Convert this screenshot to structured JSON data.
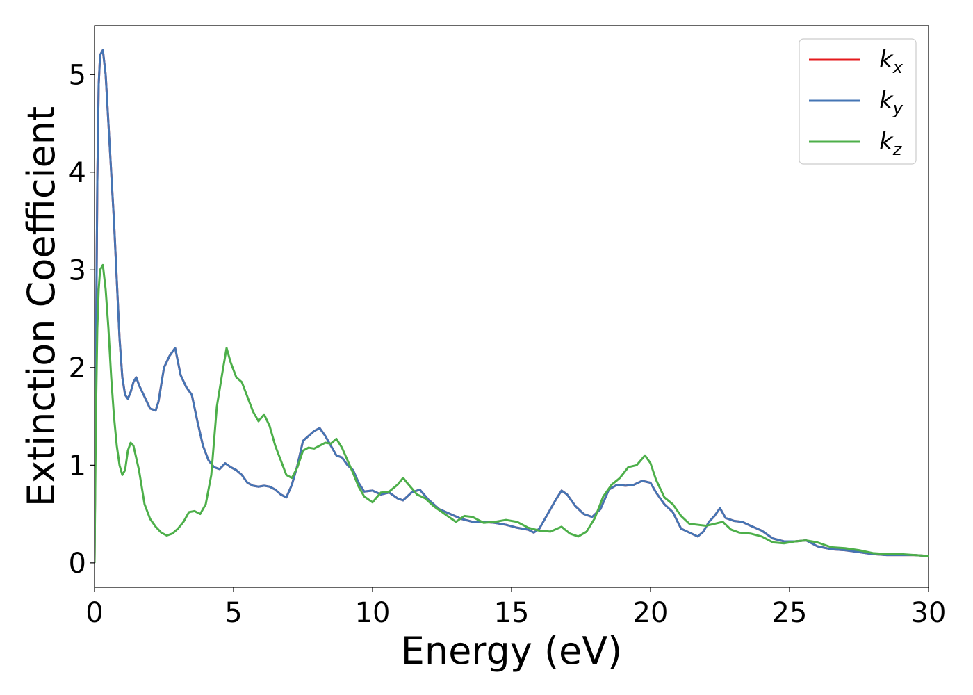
{
  "chart_data": {
    "type": "line",
    "xlabel": "Energy (eV)",
    "ylabel": "Extinction Coefficient",
    "xlim": [
      0,
      30
    ],
    "ylim": [
      -0.25,
      5.5
    ],
    "xticks": [
      0,
      5,
      10,
      15,
      20,
      25,
      30
    ],
    "yticks": [
      0,
      1,
      2,
      3,
      4,
      5
    ],
    "grid": false,
    "legend_position": "top-right",
    "series": [
      {
        "name": "k_x",
        "label_base": "k",
        "label_sub": "x",
        "color": "#e41a1c",
        "x": [
          0,
          0.05,
          0.1,
          0.15,
          0.2,
          0.3,
          0.4,
          0.5,
          0.7,
          0.9,
          1.0,
          1.1,
          1.2,
          1.3,
          1.4,
          1.5,
          1.6,
          1.8,
          2.0,
          2.2,
          2.3,
          2.5,
          2.7,
          2.9,
          3.1,
          3.3,
          3.5,
          3.7,
          3.9,
          4.1,
          4.3,
          4.5,
          4.7,
          4.9,
          5.1,
          5.3,
          5.5,
          5.7,
          5.9,
          6.1,
          6.3,
          6.5,
          6.7,
          6.9,
          7.1,
          7.3,
          7.5,
          7.7,
          7.9,
          8.1,
          8.3,
          8.5,
          8.7,
          8.9,
          9.1,
          9.3,
          9.5,
          9.7,
          10.0,
          10.3,
          10.6,
          10.9,
          11.1,
          11.4,
          11.7,
          12.0,
          12.4,
          12.8,
          13.2,
          13.6,
          14.0,
          14.4,
          14.8,
          15.2,
          15.6,
          15.8,
          16.0,
          16.3,
          16.6,
          16.8,
          17.0,
          17.3,
          17.6,
          17.9,
          18.2,
          18.5,
          18.8,
          19.1,
          19.4,
          19.7,
          20.0,
          20.2,
          20.5,
          20.8,
          21.1,
          21.4,
          21.7,
          21.9,
          22.1,
          22.3,
          22.5,
          22.7,
          23.0,
          23.3,
          23.6,
          24.0,
          24.4,
          24.8,
          25.2,
          25.6,
          26.0,
          26.5,
          27.0,
          27.5,
          28.0,
          28.5,
          29.0,
          29.5,
          30.0
        ],
        "y": [
          0.0,
          2.0,
          3.9,
          4.9,
          5.2,
          5.25,
          5.0,
          4.5,
          3.5,
          2.3,
          1.9,
          1.72,
          1.68,
          1.75,
          1.85,
          1.9,
          1.82,
          1.7,
          1.58,
          1.56,
          1.65,
          2.0,
          2.12,
          2.2,
          1.92,
          1.8,
          1.72,
          1.45,
          1.2,
          1.05,
          0.98,
          0.96,
          1.02,
          0.98,
          0.95,
          0.9,
          0.82,
          0.79,
          0.78,
          0.79,
          0.78,
          0.75,
          0.7,
          0.67,
          0.8,
          1.0,
          1.25,
          1.3,
          1.35,
          1.38,
          1.3,
          1.2,
          1.1,
          1.08,
          1.0,
          0.95,
          0.82,
          0.73,
          0.74,
          0.7,
          0.72,
          0.66,
          0.64,
          0.72,
          0.75,
          0.65,
          0.55,
          0.5,
          0.45,
          0.42,
          0.42,
          0.41,
          0.39,
          0.36,
          0.34,
          0.31,
          0.35,
          0.5,
          0.65,
          0.74,
          0.7,
          0.58,
          0.5,
          0.47,
          0.55,
          0.75,
          0.8,
          0.79,
          0.8,
          0.84,
          0.82,
          0.72,
          0.6,
          0.52,
          0.35,
          0.31,
          0.27,
          0.32,
          0.42,
          0.48,
          0.56,
          0.46,
          0.43,
          0.42,
          0.38,
          0.33,
          0.25,
          0.22,
          0.22,
          0.23,
          0.17,
          0.14,
          0.13,
          0.11,
          0.09,
          0.08,
          0.08,
          0.08,
          0.07
        ]
      },
      {
        "name": "k_y",
        "label_base": "k",
        "label_sub": "y",
        "color": "#4575b4",
        "x": [
          0,
          0.05,
          0.1,
          0.15,
          0.2,
          0.3,
          0.4,
          0.5,
          0.7,
          0.9,
          1.0,
          1.1,
          1.2,
          1.3,
          1.4,
          1.5,
          1.6,
          1.8,
          2.0,
          2.2,
          2.3,
          2.5,
          2.7,
          2.9,
          3.1,
          3.3,
          3.5,
          3.7,
          3.9,
          4.1,
          4.3,
          4.5,
          4.7,
          4.9,
          5.1,
          5.3,
          5.5,
          5.7,
          5.9,
          6.1,
          6.3,
          6.5,
          6.7,
          6.9,
          7.1,
          7.3,
          7.5,
          7.7,
          7.9,
          8.1,
          8.3,
          8.5,
          8.7,
          8.9,
          9.1,
          9.3,
          9.5,
          9.7,
          10.0,
          10.3,
          10.6,
          10.9,
          11.1,
          11.4,
          11.7,
          12.0,
          12.4,
          12.8,
          13.2,
          13.6,
          14.0,
          14.4,
          14.8,
          15.2,
          15.6,
          15.8,
          16.0,
          16.3,
          16.6,
          16.8,
          17.0,
          17.3,
          17.6,
          17.9,
          18.2,
          18.5,
          18.8,
          19.1,
          19.4,
          19.7,
          20.0,
          20.2,
          20.5,
          20.8,
          21.1,
          21.4,
          21.7,
          21.9,
          22.1,
          22.3,
          22.5,
          22.7,
          23.0,
          23.3,
          23.6,
          24.0,
          24.4,
          24.8,
          25.2,
          25.6,
          26.0,
          26.5,
          27.0,
          27.5,
          28.0,
          28.5,
          29.0,
          29.5,
          30.0
        ],
        "y": [
          0.0,
          2.0,
          3.9,
          4.9,
          5.2,
          5.25,
          5.0,
          4.5,
          3.5,
          2.3,
          1.9,
          1.72,
          1.68,
          1.75,
          1.85,
          1.9,
          1.82,
          1.7,
          1.58,
          1.56,
          1.65,
          2.0,
          2.12,
          2.2,
          1.92,
          1.8,
          1.72,
          1.45,
          1.2,
          1.05,
          0.98,
          0.96,
          1.02,
          0.98,
          0.95,
          0.9,
          0.82,
          0.79,
          0.78,
          0.79,
          0.78,
          0.75,
          0.7,
          0.67,
          0.8,
          1.0,
          1.25,
          1.3,
          1.35,
          1.38,
          1.3,
          1.2,
          1.1,
          1.08,
          1.0,
          0.95,
          0.82,
          0.73,
          0.74,
          0.7,
          0.72,
          0.66,
          0.64,
          0.72,
          0.75,
          0.65,
          0.55,
          0.5,
          0.45,
          0.42,
          0.42,
          0.41,
          0.39,
          0.36,
          0.34,
          0.31,
          0.35,
          0.5,
          0.65,
          0.74,
          0.7,
          0.58,
          0.5,
          0.47,
          0.55,
          0.75,
          0.8,
          0.79,
          0.8,
          0.84,
          0.82,
          0.72,
          0.6,
          0.52,
          0.35,
          0.31,
          0.27,
          0.32,
          0.42,
          0.48,
          0.56,
          0.46,
          0.43,
          0.42,
          0.38,
          0.33,
          0.25,
          0.22,
          0.22,
          0.23,
          0.17,
          0.14,
          0.13,
          0.11,
          0.09,
          0.08,
          0.08,
          0.08,
          0.07
        ]
      },
      {
        "name": "k_z",
        "label_base": "k",
        "label_sub": "z",
        "color": "#4daf4a",
        "x": [
          0,
          0.05,
          0.1,
          0.15,
          0.2,
          0.3,
          0.4,
          0.5,
          0.6,
          0.7,
          0.8,
          0.9,
          1.0,
          1.1,
          1.2,
          1.3,
          1.4,
          1.6,
          1.8,
          2.0,
          2.2,
          2.4,
          2.6,
          2.8,
          3.0,
          3.2,
          3.4,
          3.6,
          3.8,
          4.0,
          4.2,
          4.4,
          4.6,
          4.75,
          4.9,
          5.1,
          5.3,
          5.5,
          5.7,
          5.9,
          6.1,
          6.3,
          6.5,
          6.7,
          6.9,
          7.1,
          7.3,
          7.5,
          7.7,
          7.9,
          8.1,
          8.3,
          8.5,
          8.7,
          8.9,
          9.1,
          9.3,
          9.5,
          9.7,
          10.0,
          10.3,
          10.6,
          10.9,
          11.1,
          11.3,
          11.6,
          11.9,
          12.2,
          12.6,
          13.0,
          13.3,
          13.6,
          14.0,
          14.4,
          14.8,
          15.2,
          15.6,
          16.0,
          16.4,
          16.8,
          17.1,
          17.4,
          17.7,
          18.0,
          18.3,
          18.6,
          18.9,
          19.2,
          19.5,
          19.8,
          20.0,
          20.2,
          20.5,
          20.8,
          21.1,
          21.4,
          21.7,
          22.0,
          22.3,
          22.6,
          22.9,
          23.2,
          23.6,
          24.0,
          24.4,
          24.8,
          25.2,
          25.6,
          26.0,
          26.5,
          27.0,
          27.5,
          28.0,
          28.5,
          29.0,
          29.5,
          30.0
        ],
        "y": [
          0.0,
          1.5,
          2.4,
          2.8,
          3.0,
          3.05,
          2.8,
          2.4,
          1.9,
          1.5,
          1.2,
          1.0,
          0.9,
          0.95,
          1.15,
          1.23,
          1.2,
          0.95,
          0.6,
          0.45,
          0.37,
          0.31,
          0.28,
          0.3,
          0.35,
          0.42,
          0.52,
          0.53,
          0.5,
          0.6,
          0.9,
          1.6,
          1.95,
          2.2,
          2.05,
          1.9,
          1.85,
          1.7,
          1.55,
          1.45,
          1.52,
          1.4,
          1.2,
          1.05,
          0.9,
          0.87,
          0.98,
          1.15,
          1.18,
          1.17,
          1.2,
          1.23,
          1.22,
          1.27,
          1.18,
          1.05,
          0.92,
          0.78,
          0.68,
          0.62,
          0.72,
          0.73,
          0.8,
          0.87,
          0.8,
          0.7,
          0.66,
          0.58,
          0.5,
          0.42,
          0.48,
          0.47,
          0.41,
          0.42,
          0.44,
          0.42,
          0.36,
          0.33,
          0.32,
          0.37,
          0.3,
          0.27,
          0.32,
          0.46,
          0.68,
          0.8,
          0.87,
          0.98,
          1.0,
          1.1,
          1.02,
          0.85,
          0.67,
          0.6,
          0.48,
          0.4,
          0.39,
          0.38,
          0.4,
          0.42,
          0.34,
          0.31,
          0.3,
          0.27,
          0.21,
          0.2,
          0.22,
          0.23,
          0.21,
          0.16,
          0.15,
          0.13,
          0.1,
          0.09,
          0.09,
          0.08,
          0.07
        ]
      }
    ]
  }
}
